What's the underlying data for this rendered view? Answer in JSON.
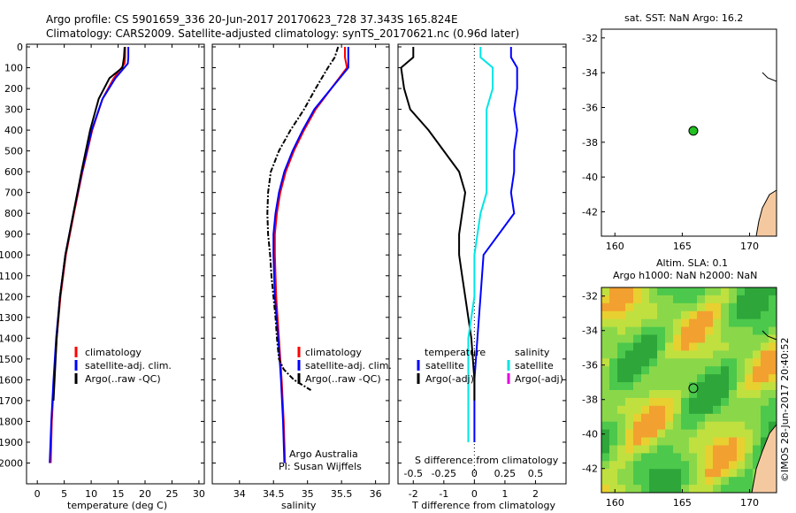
{
  "header": {
    "line1": "Argo profile: CS 5901659_336 20-Jun-2017 20170623_728 37.343S 165.824E",
    "line2": "Climatology: CARS2009. Satellite-adjusted climatology: synTS_20170621.nc (0.96d later)"
  },
  "colors": {
    "climatology": "#ff0000",
    "satellite": "#0000ff",
    "argo": "#000000",
    "sal_satellite": "#00e5e5",
    "sal_argo": "#e000e0",
    "land": "#f5c9a0"
  },
  "chart_data": [
    {
      "type": "line",
      "panel": "temperature",
      "xlabel": "temperature (deg C)",
      "ylabel": "",
      "xlim": [
        -2,
        31
      ],
      "ylim": [
        0,
        2100
      ],
      "xticks": [
        0,
        5,
        10,
        15,
        20,
        25,
        30
      ],
      "yticks": [
        0,
        100,
        200,
        300,
        400,
        500,
        600,
        700,
        800,
        900,
        1000,
        1100,
        1200,
        1300,
        1400,
        1500,
        1600,
        1700,
        1800,
        1900,
        2000
      ],
      "legend": [
        "climatology",
        "satellite-adj. clim.",
        "Argo(..raw -QC)"
      ],
      "series": [
        {
          "name": "climatology",
          "depth": [
            0,
            50,
            80,
            150,
            250,
            400,
            600,
            800,
            1000,
            1200,
            1400,
            1600,
            1800,
            2000
          ],
          "values": [
            16.3,
            16.3,
            16.2,
            14.2,
            12.1,
            10.2,
            8.4,
            6.8,
            5.3,
            4.3,
            3.6,
            3.1,
            2.7,
            2.5
          ]
        },
        {
          "name": "satellite-adj. clim.",
          "depth": [
            0,
            50,
            80,
            150,
            250,
            400,
            600,
            800,
            1000,
            1200,
            1400,
            1600,
            1800,
            2000
          ],
          "values": [
            16.9,
            16.9,
            16.8,
            14.5,
            12.1,
            10.1,
            8.3,
            6.7,
            5.2,
            4.2,
            3.5,
            3.0,
            2.6,
            2.3
          ]
        },
        {
          "name": "Argo(..raw -QC)",
          "depth": [
            0,
            50,
            100,
            150,
            250,
            400,
            600,
            800,
            1000,
            1200,
            1400,
            1600,
            1700
          ],
          "values": [
            16.2,
            16.1,
            15.8,
            13.4,
            11.4,
            9.8,
            8.2,
            6.7,
            5.2,
            4.2,
            3.6,
            3.2,
            3.0
          ]
        }
      ]
    },
    {
      "type": "line",
      "panel": "salinity",
      "xlabel": "salinity",
      "ylabel": "",
      "xlim": [
        33.6,
        36.2
      ],
      "ylim": [
        0,
        2100
      ],
      "xticks": [
        34,
        34.5,
        35,
        35.5,
        36
      ],
      "legend": [
        "climatology",
        "satellite-adj. clim.",
        "Argo(..raw -QC)"
      ],
      "annotation": [
        "Argo Australia",
        "PI: Susan Wijffels"
      ],
      "series": [
        {
          "name": "climatology",
          "depth": [
            0,
            50,
            100,
            200,
            300,
            400,
            500,
            600,
            700,
            800,
            900,
            1000,
            1200,
            1400,
            1600,
            1800,
            2000
          ],
          "values": [
            35.55,
            35.55,
            35.58,
            35.35,
            35.12,
            34.95,
            34.8,
            34.68,
            34.6,
            34.55,
            34.52,
            34.52,
            34.54,
            34.58,
            34.62,
            34.65,
            34.67
          ]
        },
        {
          "name": "satellite-adj. clim.",
          "depth": [
            0,
            50,
            100,
            200,
            300,
            400,
            500,
            600,
            700,
            800,
            900,
            1000,
            1200,
            1400,
            1600,
            1800,
            2000
          ],
          "values": [
            35.6,
            35.6,
            35.6,
            35.35,
            35.1,
            34.93,
            34.78,
            34.66,
            34.58,
            34.53,
            34.5,
            34.5,
            34.52,
            34.57,
            34.61,
            34.64,
            34.66
          ]
        },
        {
          "name": "Argo(..raw -QC)",
          "depth": [
            0,
            50,
            100,
            200,
            300,
            400,
            500,
            600,
            700,
            800,
            900,
            1000,
            1100,
            1200,
            1300,
            1400,
            1500,
            1550,
            1600,
            1650
          ],
          "values": [
            35.45,
            35.4,
            35.3,
            35.12,
            34.95,
            34.75,
            34.58,
            34.46,
            34.42,
            34.41,
            34.42,
            34.45,
            34.47,
            34.5,
            34.53,
            34.55,
            34.58,
            34.65,
            34.8,
            35.05
          ]
        }
      ]
    },
    {
      "type": "line",
      "panel": "difference",
      "xlabel": "T difference from climatology",
      "top_label": "S difference from climatology",
      "xlim": [
        -2.5,
        3
      ],
      "ylim": [
        0,
        2100
      ],
      "xticks": [
        -2,
        -1,
        0,
        1,
        2
      ],
      "top_ticks": [
        "-0.5",
        "-0.25",
        "0",
        "0.25",
        "0.5"
      ],
      "legend": {
        "temperature": [
          "temperature",
          "satellite",
          "Argo(-adj)"
        ],
        "salinity": [
          "salinity",
          "satellite",
          "Argo(-adj)"
        ]
      },
      "series": [
        {
          "name": "temperature satellite",
          "depth": [
            0,
            50,
            100,
            200,
            300,
            400,
            500,
            600,
            700,
            800,
            1000,
            1200,
            1400,
            1600,
            1800,
            1900
          ],
          "values": [
            1.2,
            1.2,
            1.4,
            1.4,
            1.3,
            1.4,
            1.3,
            1.3,
            1.2,
            1.3,
            0.3,
            0.2,
            0.1,
            0.0,
            0.0,
            0.0
          ]
        },
        {
          "name": "temperature Argo(-adj)",
          "depth": [
            0,
            50,
            100,
            200,
            300,
            400,
            500,
            600,
            700,
            800,
            900,
            1000,
            1100,
            1200,
            1400,
            1600,
            1700
          ],
          "values": [
            -2.0,
            -2.0,
            -2.4,
            -2.3,
            -2.1,
            -1.5,
            -1.0,
            -0.5,
            -0.3,
            -0.4,
            -0.5,
            -0.5,
            -0.4,
            -0.3,
            -0.1,
            0.0,
            0.0
          ]
        },
        {
          "name": "salinity satellite",
          "depth": [
            0,
            50,
            100,
            200,
            300,
            400,
            500,
            600,
            700,
            800,
            1000,
            1200,
            1400,
            1600,
            1800,
            1900
          ],
          "values": [
            0.05,
            0.05,
            0.15,
            0.15,
            0.1,
            0.1,
            0.1,
            0.1,
            0.1,
            0.05,
            0.0,
            0.0,
            -0.05,
            -0.05,
            -0.05,
            -0.05
          ]
        }
      ]
    },
    {
      "type": "scatter",
      "panel": "sst-map",
      "title": "sat. SST: NaN Argo: 16.2",
      "xlim": [
        159,
        172
      ],
      "ylim": [
        -43.4,
        -31.5
      ],
      "xticks": [
        160,
        165,
        170
      ],
      "yticks": [
        -32,
        -34,
        -36,
        -38,
        -40,
        -42
      ],
      "x": [
        165.824
      ],
      "y": [
        -37.343
      ]
    },
    {
      "type": "heatmap",
      "panel": "sla-map",
      "title_line1": "Altim. SLA: 0.1",
      "title_line2": "Argo h1000: NaN h2000: NaN",
      "xlim": [
        159,
        172
      ],
      "ylim": [
        -43.4,
        -31.5
      ],
      "xticks": [
        160,
        165,
        170
      ],
      "yticks": [
        -32,
        -34,
        -36,
        -38,
        -40,
        -42
      ],
      "x": [
        165.824
      ],
      "y": [
        -37.343
      ]
    }
  ],
  "stamp": "©IMOS 28-Jun-2017 20:40:52"
}
